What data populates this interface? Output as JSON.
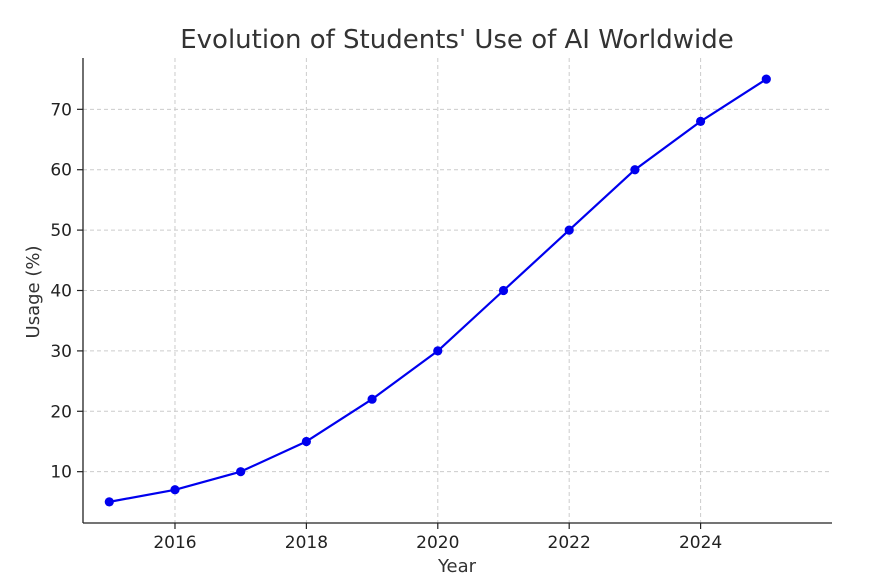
{
  "chart_data": {
    "type": "line",
    "title": "Evolution of Students' Use of AI Worldwide",
    "xlabel": "Year",
    "ylabel": "Usage (%)",
    "x": [
      2015,
      2016,
      2017,
      2018,
      2019,
      2020,
      2021,
      2022,
      2023,
      2024,
      2025
    ],
    "series": [
      {
        "values": [
          5,
          7,
          10,
          15,
          22,
          30,
          40,
          50,
          60,
          68,
          75
        ],
        "color": "#0000ee",
        "marker": "circle"
      }
    ],
    "xticks": [
      2016,
      2018,
      2020,
      2022,
      2024
    ],
    "yticks": [
      10,
      20,
      30,
      40,
      50,
      60,
      70
    ],
    "xlim": [
      2014.6,
      2026.0
    ],
    "ylim": [
      1.5,
      78.5
    ],
    "grid": true,
    "legend": "none"
  }
}
